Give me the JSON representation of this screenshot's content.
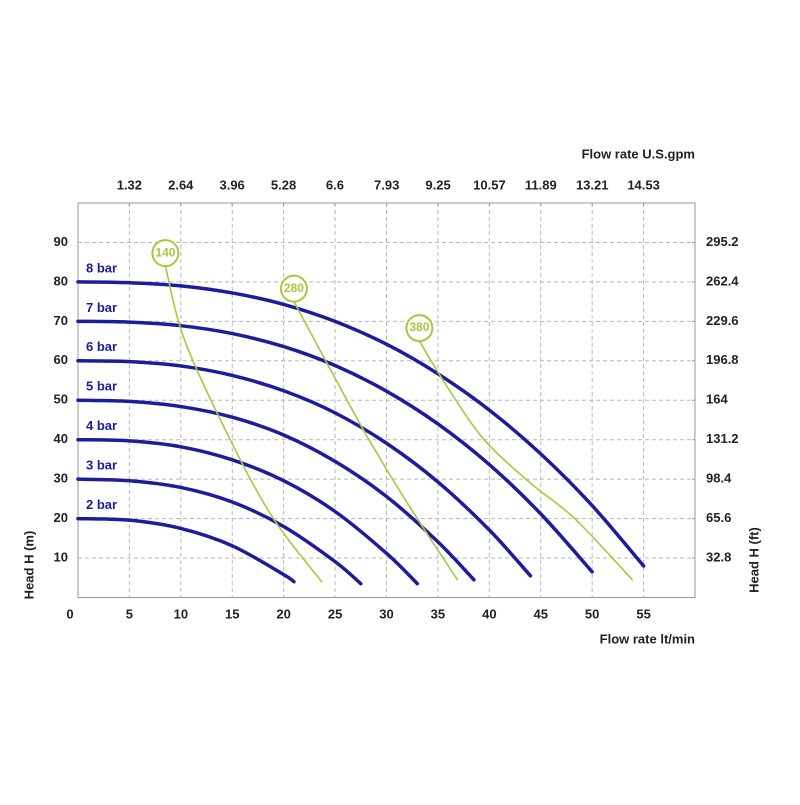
{
  "chart_data": {
    "type": "line",
    "x_label": "Flow rate  lt/min",
    "x2_label": "Flow rate U.S.gpm",
    "y_label": "Head H (m)",
    "y2_label": "Head H (ft)",
    "xlim": [
      0,
      60
    ],
    "xticks": [
      0,
      5,
      10,
      15,
      20,
      25,
      30,
      35,
      40,
      45,
      50,
      55
    ],
    "x2lim": [
      0,
      15.85
    ],
    "x2ticks": [
      1.32,
      2.64,
      3.96,
      5.28,
      6.6,
      7.93,
      9.25,
      10.57,
      11.89,
      13.21,
      14.53
    ],
    "ylim": [
      0,
      100
    ],
    "yticks": [
      10,
      20,
      30,
      40,
      50,
      60,
      70,
      80,
      90
    ],
    "y2lim": [
      0,
      328
    ],
    "y2ticks": [
      32.8,
      65.6,
      98.4,
      131.2,
      164,
      196.8,
      229.6,
      262.4,
      295.2
    ],
    "grid": true,
    "series": [
      {
        "name": "2 bar",
        "color": "#1c1c9c",
        "x": [
          0,
          5,
          10,
          15,
          20,
          21
        ],
        "values": [
          20,
          19.6,
          17.5,
          13.1,
          5.8,
          4
        ]
      },
      {
        "name": "3 bar",
        "color": "#1c1c9c",
        "x": [
          0,
          5,
          10,
          15,
          20,
          25,
          27.5
        ],
        "values": [
          30,
          29.6,
          27.9,
          24.2,
          18,
          9.1,
          3.5
        ]
      },
      {
        "name": "4 bar",
        "color": "#1c1c9c",
        "x": [
          0,
          5,
          10,
          15,
          20,
          25,
          30,
          33
        ],
        "values": [
          40,
          39.7,
          38.2,
          34.9,
          29.6,
          21.8,
          11.2,
          3.5
        ]
      },
      {
        "name": "5 bar",
        "color": "#1c1c9c",
        "x": [
          0,
          5,
          10,
          15,
          20,
          25,
          30,
          35,
          38.5
        ],
        "values": [
          50,
          49.7,
          48.4,
          45.7,
          41.2,
          34.5,
          25.6,
          14.1,
          4.5
        ]
      },
      {
        "name": "6 bar",
        "color": "#1c1c9c",
        "x": [
          0,
          5,
          10,
          15,
          20,
          25,
          30,
          35,
          40,
          44
        ],
        "values": [
          60,
          59.8,
          58.7,
          56.3,
          52.4,
          46.8,
          39.1,
          29.3,
          17.1,
          5.5
        ]
      },
      {
        "name": "7 bar",
        "color": "#1c1c9c",
        "x": [
          0,
          5,
          10,
          15,
          20,
          25,
          30,
          35,
          40,
          45,
          50
        ],
        "values": [
          70,
          69.8,
          68.9,
          66.9,
          63.6,
          58.8,
          52.3,
          44,
          33.7,
          21.2,
          6.5
        ]
      },
      {
        "name": "8 bar",
        "color": "#1c1c9c",
        "x": [
          0,
          5,
          10,
          15,
          20,
          25,
          30,
          35,
          40,
          45,
          50,
          55
        ],
        "values": [
          80,
          79.8,
          79,
          77.2,
          74.3,
          70,
          64.2,
          56.7,
          47.5,
          36.4,
          23.3,
          8
        ]
      },
      {
        "name": "140",
        "color": "#a8c840",
        "marker": "circle",
        "x": [
          8.5,
          10.4,
          14.8,
          19,
          23.7
        ],
        "values": [
          84,
          65,
          40,
          20,
          4
        ]
      },
      {
        "name": "280",
        "color": "#a8c840",
        "marker": "circle",
        "x": [
          21,
          24.5,
          28.3,
          32.5,
          36.9
        ],
        "values": [
          75,
          58,
          40,
          22,
          4.5
        ]
      },
      {
        "name": "380",
        "color": "#a8c840",
        "marker": "circle",
        "x": [
          33.2,
          36,
          39.5,
          44,
          48.3,
          53.9
        ],
        "values": [
          65,
          53,
          40,
          29,
          20,
          4.5
        ]
      }
    ]
  }
}
